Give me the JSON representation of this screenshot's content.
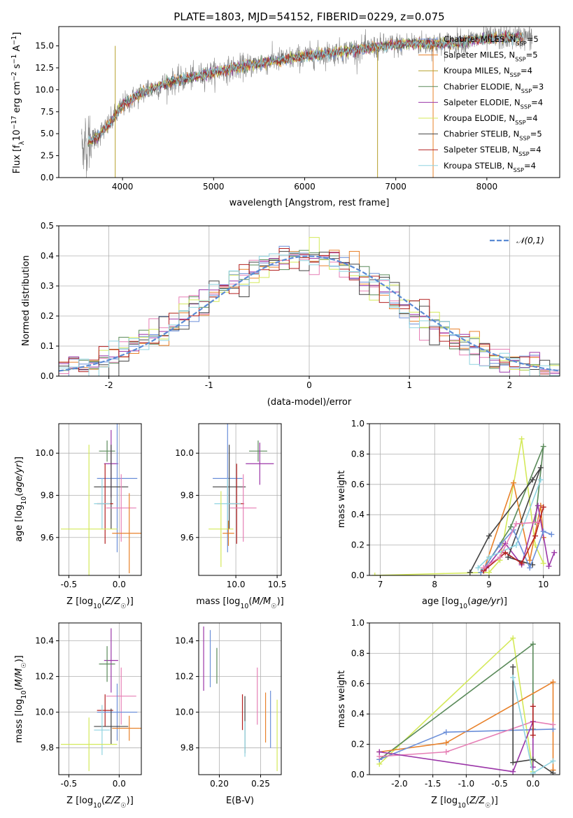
{
  "figure": {
    "title": "PLATE=1803, MJD=54152, FIBERID=0229, z=0.075"
  },
  "colors": {
    "Chabrier MILES": "#6b8fd9",
    "Salpeter MILES": "#e8812a",
    "Kroupa MILES": "#b5a02c",
    "Chabrier ELODIE": "#5a8a5a",
    "Salpeter ELODIE": "#9b36a8",
    "Kroupa ELODIE": "#d4e95a",
    "Chabrier STELIB": "#444444",
    "Salpeter STELIB": "#b32020",
    "Kroupa STELIB": "#8fd3e0",
    "pink": "#e67fb5",
    "data": "#808080"
  },
  "chart_data": [
    {
      "id": "spectrum",
      "type": "line",
      "xlabel": "wavelength [Angstrom, rest frame]",
      "ylabel": "Flux [f_λ 10^-17 erg cm^-2 s^-1 A^-1]",
      "xlim": [
        3300,
        8800
      ],
      "ylim": [
        0,
        17.2
      ],
      "xticks": [
        4000,
        5000,
        6000,
        7000,
        8000
      ],
      "yticks": [
        0.0,
        2.5,
        5.0,
        7.5,
        10.0,
        12.5,
        15.0
      ],
      "legend_position": "top-right",
      "legend": [
        {
          "name": "Chabrier MILES",
          "nssp": "5"
        },
        {
          "name": "Salpeter MILES",
          "nssp": "5"
        },
        {
          "name": "Kroupa MILES",
          "nssp": "4"
        },
        {
          "name": "Chabrier ELODIE",
          "nssp": "3"
        },
        {
          "name": "Salpeter ELODIE",
          "nssp": "4"
        },
        {
          "name": "Kroupa ELODIE",
          "nssp": "4"
        },
        {
          "name": "Chabrier STELIB",
          "nssp": "5"
        },
        {
          "name": "Salpeter STELIB",
          "nssp": "4"
        },
        {
          "name": "Kroupa STELIB",
          "nssp": "4"
        }
      ],
      "continuum_x": [
        3550,
        3700,
        3850,
        4000,
        4200,
        4500,
        4800,
        5000,
        5300,
        5600,
        6000,
        6300,
        6600,
        6900,
        7200,
        7500,
        7800,
        8100,
        8400
      ],
      "continuum_y": [
        3.6,
        4.5,
        6.0,
        8.2,
        9.6,
        10.8,
        11.5,
        12.0,
        12.6,
        13.2,
        13.8,
        14.2,
        14.6,
        15.0,
        15.3,
        15.2,
        15.6,
        15.9,
        16.0
      ],
      "model_range": [
        3620,
        8400
      ],
      "data_range": [
        3550,
        8500
      ],
      "grid": false
    },
    {
      "id": "residuals",
      "type": "histogram",
      "xlabel": "(data-model)/error",
      "ylabel": "Normed distribution",
      "xlim": [
        -2.5,
        2.5
      ],
      "ylim": [
        0,
        0.5
      ],
      "xticks": [
        -2,
        -1,
        0,
        1,
        2
      ],
      "yticks": [
        0.0,
        0.1,
        0.2,
        0.3,
        0.4,
        0.5
      ],
      "legend": "𝒩(0,1)",
      "grid": true
    },
    {
      "id": "age-vs-Z",
      "type": "scatter",
      "xlabel": "Z [log10(Z/Z☉)]",
      "ylabel": "age [log10(age/yr)]",
      "xlim": [
        -0.6,
        0.22
      ],
      "ylim": [
        9.42,
        10.14
      ],
      "xticks": [
        -0.5,
        0.0
      ],
      "yticks": [
        9.6,
        9.8,
        10.0
      ],
      "grid": true,
      "points": [
        {
          "c": "Chabrier ELODIE",
          "x": -0.12,
          "y": 10.01,
          "xe": 0.08,
          "ye": 0.05
        },
        {
          "c": "Salpeter ELODIE",
          "x": -0.08,
          "y": 9.95,
          "xe": 0.07,
          "ye": 0.16
        },
        {
          "c": "Chabrier MILES",
          "x": -0.02,
          "y": 9.88,
          "xe": 0.2,
          "ye": 0.35
        },
        {
          "c": "Chabrier STELIB",
          "x": -0.08,
          "y": 9.84,
          "xe": 0.17,
          "ye": 0.2
        },
        {
          "c": "Salpeter STELIB",
          "x": -0.14,
          "y": 9.76,
          "xe": 0.08,
          "ye": 0.19
        },
        {
          "c": "Kroupa STELIB",
          "x": -0.17,
          "y": 9.76,
          "xe": 0.08,
          "ye": 0.12
        },
        {
          "c": "pink",
          "x": 0.02,
          "y": 9.74,
          "xe": 0.15,
          "ye": 0.16
        },
        {
          "c": "Kroupa ELODIE",
          "x": -0.3,
          "y": 9.64,
          "xe": 0.28,
          "ye": 0.4
        },
        {
          "c": "Salpeter MILES",
          "x": 0.1,
          "y": 9.62,
          "xe": 0.17,
          "ye": 0.19
        }
      ]
    },
    {
      "id": "age-vs-mass",
      "type": "scatter",
      "xlabel": "mass [log10(M/M☉)]",
      "ylabel": "",
      "xlim": [
        9.55,
        10.55
      ],
      "ylim": [
        9.42,
        10.14
      ],
      "xticks": [
        10.0,
        10.5
      ],
      "yticks": [
        9.6,
        9.8,
        10.0
      ],
      "grid": true,
      "points": [
        {
          "c": "Chabrier ELODIE",
          "x": 10.27,
          "y": 10.01,
          "xe": 0.11,
          "ye": 0.05
        },
        {
          "c": "Salpeter ELODIE",
          "x": 10.29,
          "y": 9.95,
          "xe": 0.17,
          "ye": 0.1
        },
        {
          "c": "Chabrier MILES",
          "x": 9.9,
          "y": 9.88,
          "xe": 0.18,
          "ye": 0.35
        },
        {
          "c": "Chabrier STELIB",
          "x": 9.92,
          "y": 9.84,
          "xe": 0.2,
          "ye": 0.2
        },
        {
          "c": "Salpeter STELIB",
          "x": 10.01,
          "y": 9.76,
          "xe": 0.09,
          "ye": 0.19
        },
        {
          "c": "Kroupa STELIB",
          "x": 9.9,
          "y": 9.76,
          "xe": 0.16,
          "ye": 0.12
        },
        {
          "c": "pink",
          "x": 10.09,
          "y": 9.74,
          "xe": 0.16,
          "ye": 0.16
        },
        {
          "c": "Kroupa ELODIE",
          "x": 9.82,
          "y": 9.64,
          "xe": 0.15,
          "ye": 0.18
        },
        {
          "c": "Salpeter MILES",
          "x": 9.91,
          "y": 9.62,
          "xe": 0.07,
          "ye": 0.06
        }
      ]
    },
    {
      "id": "weight-vs-age",
      "type": "line",
      "xlabel": "age  [log10(age/yr)]",
      "ylabel": "mass weight",
      "xlim": [
        6.8,
        10.3
      ],
      "ylim": [
        0,
        1.0
      ],
      "xticks": [
        7,
        8,
        9,
        10
      ],
      "yticks": [
        0.0,
        0.2,
        0.4,
        0.6,
        0.8,
        1.0
      ],
      "grid": true,
      "series": [
        {
          "c": "Kroupa ELODIE",
          "x": [
            6.9,
            9.0,
            9.2,
            9.6,
            9.85,
            10.0
          ],
          "y": [
            0.0,
            0.02,
            0.1,
            0.9,
            0.2,
            0.08
          ]
        },
        {
          "c": "Chabrier ELODIE",
          "x": [
            8.9,
            9.4,
            10.0,
            9.85
          ],
          "y": [
            0.04,
            0.32,
            0.85,
            0.35
          ]
        },
        {
          "c": "Salpeter MILES",
          "x": [
            8.9,
            9.45,
            9.75,
            9.95,
            10.0
          ],
          "y": [
            0.03,
            0.61,
            0.1,
            0.46,
            0.25
          ]
        },
        {
          "c": "Salpeter ELODIE",
          "x": [
            8.95,
            9.3,
            9.6,
            9.9,
            10.1,
            10.2
          ],
          "y": [
            0.05,
            0.21,
            0.07,
            0.46,
            0.06,
            0.15
          ]
        },
        {
          "c": "Chabrier STELIB",
          "x": [
            8.65,
            9.0,
            9.8,
            9.95,
            9.35,
            9.8
          ],
          "y": [
            0.02,
            0.26,
            0.63,
            0.71,
            0.12,
            0.07
          ]
        },
        {
          "c": "Chabrier MILES",
          "x": [
            8.85,
            9.2,
            9.45,
            9.75,
            10.0,
            10.15
          ],
          "y": [
            0.02,
            0.2,
            0.3,
            0.05,
            0.29,
            0.27
          ]
        },
        {
          "c": "Salpeter STELIB",
          "x": [
            8.9,
            9.3,
            9.6,
            9.85,
            10.0
          ],
          "y": [
            0.03,
            0.15,
            0.08,
            0.26,
            0.45
          ]
        },
        {
          "c": "Kroupa STELIB",
          "x": [
            8.8,
            9.0,
            9.5,
            9.95
          ],
          "y": [
            0.05,
            0.12,
            0.2,
            0.63
          ]
        },
        {
          "c": "pink",
          "x": [
            8.9,
            9.2,
            9.5,
            9.9
          ],
          "y": [
            0.05,
            0.12,
            0.34,
            0.35
          ]
        }
      ]
    },
    {
      "id": "mass-vs-Z",
      "type": "scatter",
      "xlabel": "Z [log10(Z/Z☉)]",
      "ylabel": "mass [log10(M/M☉)]",
      "xlim": [
        -0.6,
        0.22
      ],
      "ylim": [
        9.65,
        10.5
      ],
      "xticks": [
        -0.5,
        0.0
      ],
      "yticks": [
        9.8,
        10.0,
        10.2,
        10.4
      ],
      "grid": true,
      "points": [
        {
          "c": "Salpeter ELODIE",
          "x": -0.08,
          "y": 10.29,
          "xe": 0.07,
          "ye": 0.18
        },
        {
          "c": "Chabrier ELODIE",
          "x": -0.12,
          "y": 10.27,
          "xe": 0.08,
          "ye": 0.1
        },
        {
          "c": "pink",
          "x": 0.02,
          "y": 10.09,
          "xe": 0.15,
          "ye": 0.16
        },
        {
          "c": "Salpeter STELIB",
          "x": -0.14,
          "y": 10.01,
          "xe": 0.08,
          "ye": 0.09
        },
        {
          "c": "Chabrier MILES",
          "x": -0.02,
          "y": 10.0,
          "xe": 0.2,
          "ye": 0.16
        },
        {
          "c": "Chabrier STELIB",
          "x": -0.08,
          "y": 9.92,
          "xe": 0.17,
          "ye": 0.1
        },
        {
          "c": "Salpeter MILES",
          "x": 0.1,
          "y": 9.91,
          "xe": 0.17,
          "ye": 0.07
        },
        {
          "c": "Kroupa STELIB",
          "x": -0.17,
          "y": 9.9,
          "xe": 0.08,
          "ye": 0.14
        },
        {
          "c": "Kroupa ELODIE",
          "x": -0.3,
          "y": 9.82,
          "xe": 0.28,
          "ye": 0.15
        }
      ]
    },
    {
      "id": "mass-vs-ebv",
      "type": "scatter",
      "xlabel": "E(B-V)",
      "ylabel": "",
      "xlim": [
        0.175,
        0.275
      ],
      "ylim": [
        9.65,
        10.5
      ],
      "xticks": [
        0.2,
        0.25
      ],
      "yticks": [
        9.8,
        10.0,
        10.2,
        10.4
      ],
      "grid": true,
      "points": [
        {
          "c": "Salpeter ELODIE",
          "x": 0.181,
          "y": 10.3,
          "xe": 0,
          "ye": 0.18
        },
        {
          "c": "Chabrier MILES",
          "x": 0.189,
          "y": 10.3,
          "xe": 0,
          "ye": 0.16
        },
        {
          "c": "Chabrier ELODIE",
          "x": 0.197,
          "y": 10.26,
          "xe": 0,
          "ye": 0.1
        },
        {
          "c": "Salpeter STELIB",
          "x": 0.228,
          "y": 10.0,
          "xe": 0,
          "ye": 0.1
        },
        {
          "c": "Chabrier STELIB",
          "x": 0.231,
          "y": 9.93,
          "xe": 0,
          "ye": 0.16
        },
        {
          "c": "Kroupa STELIB",
          "x": 0.231,
          "y": 9.85,
          "xe": 0,
          "ye": 0.1
        },
        {
          "c": "pink",
          "x": 0.246,
          "y": 10.09,
          "xe": 0,
          "ye": 0.16
        },
        {
          "c": "Salpeter MILES",
          "x": 0.256,
          "y": 9.97,
          "xe": 0,
          "ye": 0.14
        },
        {
          "c": "Chabrier MILES",
          "x": 0.262,
          "y": 9.96,
          "xe": 0,
          "ye": 0.16
        },
        {
          "c": "Kroupa ELODIE",
          "x": 0.27,
          "y": 9.87,
          "xe": 0,
          "ye": 0.2
        }
      ]
    },
    {
      "id": "weight-vs-Z",
      "type": "line",
      "xlabel": "Z [log10(Z/Z☉)]",
      "ylabel": "mass weight",
      "xlim": [
        -2.45,
        0.4
      ],
      "ylim": [
        0,
        1.0
      ],
      "xticks": [
        -2.0,
        -1.5,
        -1.0,
        -0.5,
        0.0
      ],
      "yticks": [
        0.0,
        0.2,
        0.4,
        0.6,
        0.8,
        1.0
      ],
      "grid": true,
      "series": [
        {
          "c": "Kroupa ELODIE",
          "x": [
            -2.3,
            -0.3,
            0.0
          ],
          "y": [
            0.07,
            0.9,
            0.02
          ]
        },
        {
          "c": "Chabrier ELODIE",
          "x": [
            -2.3,
            0.0,
            0.0
          ],
          "y": [
            0.1,
            0.86,
            0.3
          ]
        },
        {
          "c": "Salpeter MILES",
          "x": [
            -2.3,
            -1.3,
            0.3,
            0.3
          ],
          "y": [
            0.15,
            0.21,
            0.61,
            0.03
          ]
        },
        {
          "c": "Chabrier MILES",
          "x": [
            -2.3,
            -1.3,
            0.3
          ],
          "y": [
            0.1,
            0.28,
            0.3
          ]
        },
        {
          "c": "pink",
          "x": [
            -2.3,
            -1.3,
            0.0,
            0.3
          ],
          "y": [
            0.12,
            0.15,
            0.35,
            0.33
          ]
        },
        {
          "c": "Salpeter ELODIE",
          "x": [
            -2.3,
            -0.3,
            0.0,
            0.0
          ],
          "y": [
            0.15,
            0.02,
            0.35,
            0.05
          ]
        },
        {
          "c": "Chabrier STELIB",
          "x": [
            -0.3,
            -0.3,
            0.0,
            0.3
          ],
          "y": [
            0.71,
            0.08,
            0.1,
            0.01
          ]
        },
        {
          "c": "Kroupa STELIB",
          "x": [
            -0.3,
            0.0,
            0.3
          ],
          "y": [
            0.64,
            0.01,
            0.09
          ]
        },
        {
          "c": "Salpeter STELIB",
          "x": [
            0.0,
            0.0
          ],
          "y": [
            0.45,
            0.26
          ]
        }
      ]
    }
  ]
}
